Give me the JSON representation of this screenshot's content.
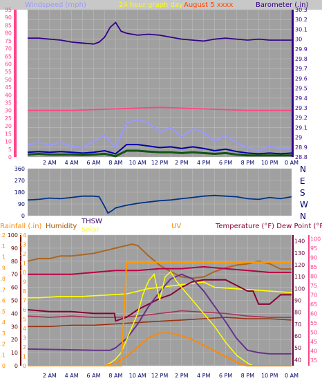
{
  "chart_data": [
    {
      "type": "line",
      "header": {
        "left_axis_label": "Windspeed (mph)",
        "center_title": "24 hour graph day",
        "center_date": "August 5 xxxx",
        "right_axis_label": "Barometer (.in)"
      },
      "x_ticks": [
        "2 AM",
        "4 AM",
        "6 AM",
        "8 AM",
        "10 AM",
        "12 PM",
        "2 PM",
        "4 PM",
        "6 PM",
        "8 PM",
        "10 PM",
        "0 AM"
      ],
      "left_axis": {
        "ticks": [
          "0",
          "5",
          "10",
          "15",
          "20",
          "25",
          "30",
          "35",
          "40",
          "45",
          "50",
          "55",
          "60",
          "65",
          "70",
          "75",
          "80",
          "85",
          "90",
          "95"
        ],
        "ylim": [
          0,
          95
        ]
      },
      "right_axis": {
        "ticks": [
          "28.8",
          "28.9",
          "29",
          "29.1",
          "29.2",
          "29.3",
          "29.4",
          "29.5",
          "29.6",
          "29.7",
          "29.8",
          "29.9",
          "30",
          "30.1",
          "30.2",
          "30.3"
        ],
        "ylim": [
          28.8,
          30.3
        ]
      },
      "series": [
        {
          "name": "Barometer",
          "color": "#330088",
          "x": [
            0,
            1,
            2,
            3,
            4,
            5,
            6,
            6.5,
            7,
            7.5,
            8,
            8.5,
            9,
            9.5,
            10,
            11,
            12,
            13,
            14,
            15,
            16,
            17,
            18,
            19,
            20,
            21,
            22,
            23,
            24
          ],
          "values": [
            30.01,
            30.01,
            30.0,
            29.99,
            29.97,
            29.96,
            29.95,
            29.97,
            30.02,
            30.12,
            30.17,
            30.08,
            30.06,
            30.05,
            30.04,
            30.05,
            30.04,
            30.02,
            30.0,
            29.99,
            29.98,
            30.0,
            30.01,
            30.0,
            29.99,
            30.0,
            29.99,
            29.99,
            29.99
          ]
        },
        {
          "name": "Windspeed (mph)",
          "color": "#ff4488",
          "x": [
            0,
            4,
            8,
            12,
            16,
            20,
            24
          ],
          "values": [
            30,
            30,
            31,
            32,
            31,
            30,
            30
          ]
        }
      ],
      "series_unlabeled": [
        {
          "kind": "gust",
          "color": "#9999ff",
          "x": [
            0,
            1,
            2,
            3,
            4,
            5,
            6,
            7,
            8,
            9,
            10,
            11,
            12,
            13,
            14,
            15,
            16,
            17,
            18,
            19,
            20,
            21,
            22,
            23,
            24
          ],
          "values": [
            8,
            9,
            8,
            9,
            7,
            6,
            10,
            14,
            6,
            22,
            24,
            22,
            16,
            19,
            13,
            18,
            16,
            10,
            14,
            9,
            6,
            4,
            7,
            5,
            6
          ]
        },
        {
          "kind": "average",
          "color": "#0000aa",
          "x": [
            0,
            1,
            2,
            3,
            4,
            5,
            6,
            7,
            8,
            9,
            10,
            11,
            12,
            13,
            14,
            15,
            16,
            17,
            18,
            19,
            20,
            21,
            22,
            23,
            24
          ],
          "values": [
            3,
            3.5,
            3,
            3.5,
            3,
            2.5,
            3,
            4,
            2,
            8,
            8,
            7,
            6,
            6.5,
            5.5,
            6.5,
            5.5,
            4,
            5,
            3.5,
            2.5,
            2,
            2.5,
            2,
            2.5
          ]
        },
        {
          "kind": "low",
          "color": "#115511",
          "x": [
            0,
            1,
            2,
            3,
            4,
            5,
            6,
            7,
            8,
            9,
            10,
            11,
            12,
            13,
            14,
            15,
            16,
            17,
            18,
            19,
            20,
            21,
            22,
            23,
            24
          ],
          "values": [
            1.5,
            2,
            1.5,
            1.5,
            1.5,
            1.2,
            1.5,
            2,
            0.5,
            4,
            4,
            3.5,
            3,
            3,
            2.5,
            3,
            2.5,
            2,
            2.5,
            1.5,
            1,
            1,
            1,
            1,
            1
          ]
        }
      ]
    },
    {
      "type": "line",
      "x_ticks": [],
      "left_axis": {
        "ticks": [
          "0",
          "90",
          "180",
          "270",
          "360"
        ],
        "ylim": [
          0,
          360
        ]
      },
      "right_axis_letters": [
        "N",
        "W",
        "S",
        "E",
        "N"
      ],
      "series": [
        {
          "name": "Wind Direction",
          "color": "#003388",
          "x": [
            0,
            1,
            2,
            3,
            4,
            5,
            6,
            6.5,
            7,
            7.3,
            7.7,
            8,
            9,
            10,
            11,
            12,
            13,
            14,
            15,
            16,
            17,
            18,
            19,
            20,
            21,
            22,
            23,
            24
          ],
          "values": [
            120,
            125,
            135,
            130,
            140,
            150,
            150,
            145,
            70,
            20,
            40,
            60,
            80,
            95,
            105,
            115,
            120,
            130,
            140,
            150,
            155,
            150,
            145,
            130,
            125,
            140,
            130,
            145
          ]
        }
      ]
    },
    {
      "type": "line",
      "header": {
        "rainfall_label": "Rainfall (.in)",
        "humidity_label": "Humidity",
        "thsw_label": "THSW",
        "solar_label": "Solar",
        "uv_label": "UV",
        "temp_label": "Temperature (°F) Dew Point (°F)"
      },
      "x_ticks": [
        "2 AM",
        "4 AM",
        "6 AM",
        "8 AM",
        "10 AM",
        "12 PM",
        "2 PM",
        "4 PM",
        "6 PM",
        "8 PM",
        "10 PM",
        "0 AM"
      ],
      "axes": {
        "humidity": {
          "ticks": [
            "0",
            "10",
            "20",
            "30",
            "40",
            "50",
            "60",
            "70",
            "80",
            "90",
            "100"
          ],
          "ylim": [
            0,
            100
          ]
        },
        "rain": {
          "ticks": [
            "0",
            "0.1",
            "0.2",
            "0.3",
            "0.4",
            "0.5",
            "0.6",
            "0.7",
            "0.8",
            "0.9",
            "1",
            "1.1",
            "1.2"
          ],
          "ylim": [
            0,
            1.2
          ]
        },
        "uv": {
          "ticks": [
            "0",
            "1",
            "2",
            "3",
            "4",
            "5",
            "6",
            "7",
            "8",
            "9",
            "10",
            "11",
            "12",
            "13",
            "14"
          ],
          "ylim": [
            0,
            14
          ]
        },
        "temp_thsw": {
          "ticks": [
            "40",
            "50",
            "60",
            "70",
            "80",
            "90",
            "100",
            "110",
            "120",
            "130",
            "140"
          ],
          "ylim": [
            35,
            145
          ]
        },
        "temp_dew": {
          "ticks": [
            "35",
            "40",
            "45",
            "50",
            "55",
            "60",
            "65",
            "70",
            "75",
            "80",
            "85",
            "90",
            "95",
            "100"
          ],
          "ylim": [
            32,
            102
          ]
        }
      },
      "series": [
        {
          "name": "Humidity",
          "axis": "humidity",
          "color": "#aa6622",
          "x": [
            0,
            1,
            2,
            3,
            4,
            5,
            6,
            7,
            8,
            9,
            9.5,
            10,
            11,
            12,
            13,
            14,
            15,
            16,
            17,
            18,
            19,
            20,
            21,
            22,
            23,
            24
          ],
          "values": [
            80,
            82,
            82,
            84,
            84,
            85,
            86,
            88,
            90,
            92,
            93,
            92,
            84,
            77,
            72,
            68,
            67,
            68,
            72,
            75,
            77,
            78,
            80,
            78,
            74,
            74
          ]
        },
        {
          "name": "Temperature (°F)",
          "axis": "temp_dew",
          "color": "#bb0044",
          "x": [
            0,
            2,
            4,
            6,
            8,
            10,
            12,
            14,
            16,
            18,
            20,
            22,
            24
          ],
          "values": [
            81,
            81,
            81,
            82,
            83,
            83,
            84,
            84,
            85,
            84,
            83,
            82,
            82
          ]
        },
        {
          "name": "Dew Point (°F)",
          "axis": "temp_dew",
          "color": "#880033",
          "x": [
            0,
            2,
            4,
            6,
            7.9,
            8,
            9,
            10,
            11,
            12,
            13,
            14,
            15,
            16,
            17,
            18,
            19,
            20,
            20.5,
            21,
            22,
            23,
            24
          ],
          "values": [
            62,
            61,
            61,
            60,
            60,
            56,
            58,
            62,
            65,
            68,
            70,
            74,
            77,
            78,
            78,
            78,
            75,
            72,
            72,
            65,
            65,
            70,
            70
          ]
        },
        {
          "name": "THSW",
          "axis": "temp_thsw",
          "color": "#663388",
          "x": [
            0,
            6,
            7.5,
            8,
            9,
            10,
            11,
            12,
            13,
            14,
            15,
            16,
            17,
            18,
            19,
            20,
            21,
            22,
            24
          ],
          "values": [
            49,
            48,
            48,
            50,
            58,
            70,
            85,
            97,
            108,
            112,
            108,
            98,
            85,
            72,
            58,
            48,
            46,
            45,
            45
          ]
        },
        {
          "name": "Solar",
          "axis": "humidity",
          "color": "#ffff00",
          "x": [
            0,
            7,
            7.5,
            8,
            8.5,
            9,
            10,
            10.5,
            11,
            11.5,
            12,
            12.5,
            13,
            13.5,
            14,
            14.5,
            15,
            16,
            17,
            18,
            19,
            20,
            20.5,
            24
          ],
          "values": [
            0,
            0,
            2,
            5,
            10,
            20,
            40,
            55,
            65,
            70,
            50,
            68,
            72,
            65,
            60,
            55,
            50,
            40,
            30,
            18,
            8,
            2,
            0,
            0
          ]
        },
        {
          "name": "UV",
          "axis": "uv",
          "color": "#ff8800",
          "x": [
            0,
            7,
            8,
            9,
            10,
            11,
            12,
            13,
            14,
            15,
            16,
            17,
            18,
            19,
            19.5,
            20,
            24
          ],
          "values": [
            0,
            0,
            0.3,
            1,
            2,
            3,
            3.5,
            3.5,
            3.2,
            2.8,
            2.2,
            1.6,
            1,
            0.4,
            0.1,
            0,
            0
          ]
        },
        {
          "name": "Rainfall (.in)",
          "axis": "rain",
          "color": "#ff9900",
          "x": [
            0,
            8,
            8.5,
            9,
            9.5,
            24
          ],
          "values": [
            0,
            0,
            0,
            0.95,
            0.95,
            0.95
          ]
        }
      ],
      "series_unlabeled": [
        {
          "kind": "brown-dark",
          "axis": "humidity",
          "color": "#993311",
          "x": [
            0,
            2,
            4,
            6,
            8,
            10,
            12,
            14,
            16,
            18,
            20,
            22,
            24
          ],
          "values": [
            30,
            30,
            31,
            31,
            32,
            33,
            34,
            35,
            36,
            37,
            36,
            36,
            35
          ]
        },
        {
          "name_hint": "",
          "kind": "yellow-flat",
          "axis": "humidity",
          "color": "#ffff00",
          "x": [
            0,
            1,
            3,
            5,
            7,
            9,
            10,
            11,
            12,
            13,
            14,
            15,
            16,
            17,
            24
          ],
          "values": [
            52,
            52,
            53,
            53,
            54,
            55,
            57,
            59,
            60,
            61,
            62,
            63,
            64,
            60,
            56
          ]
        },
        {
          "kind": "red-mid",
          "axis": "humidity",
          "color": "#aa3355",
          "x": [
            0,
            2,
            4,
            6,
            8,
            10,
            12,
            14,
            16,
            18,
            20,
            22,
            24
          ],
          "values": [
            38,
            37,
            38,
            37,
            37,
            38,
            40,
            42,
            41,
            40,
            38,
            37,
            37
          ]
        }
      ]
    }
  ]
}
